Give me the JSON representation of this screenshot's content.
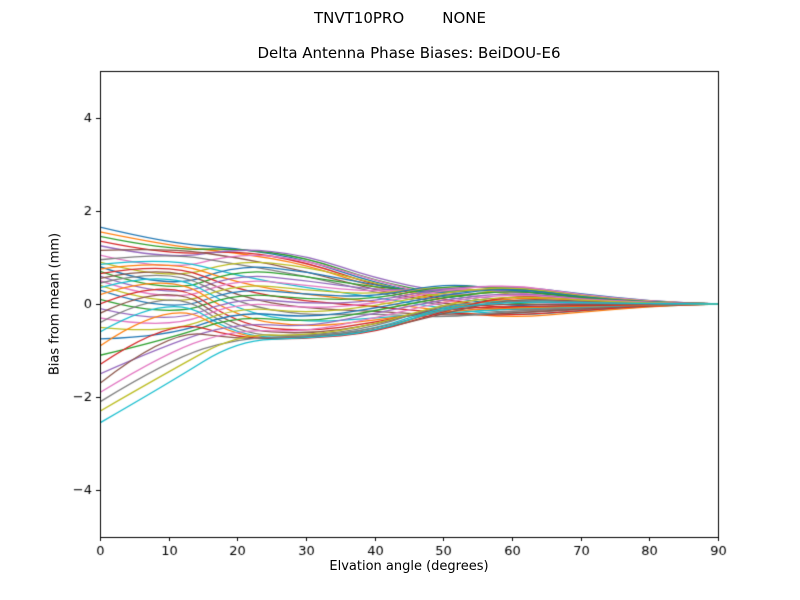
{
  "page": {
    "suptitle": "TNVT10PRO        NONE",
    "title": "Delta Antenna Phase Biases: BeiDOU-E6"
  },
  "chart_data": {
    "type": "line",
    "suptitle": "TNVT10PRO        NONE",
    "title": "Delta Antenna Phase Biases: BeiDOU-E6",
    "xlabel": "Elvation angle (degrees)",
    "ylabel": "Bias from mean (mm)",
    "xlim": [
      0,
      90
    ],
    "ylim": [
      -5,
      5
    ],
    "xticks": [
      0,
      10,
      20,
      30,
      40,
      50,
      60,
      70,
      80,
      90
    ],
    "yticks": [
      -4,
      -2,
      0,
      2,
      4
    ],
    "grid": false,
    "legend": "none",
    "x": [
      0,
      10,
      20,
      30,
      40,
      50,
      60,
      70,
      80,
      90
    ],
    "series": [
      {
        "color": "#1f77b4",
        "values": [
          1.65,
          1.3,
          1.2,
          0.95,
          0.45,
          0.15,
          -0.05,
          -0.05,
          0.0,
          0.0
        ]
      },
      {
        "color": "#ff7f0e",
        "values": [
          1.55,
          1.25,
          1.1,
          0.85,
          0.35,
          0.05,
          -0.1,
          -0.08,
          -0.02,
          0.0
        ]
      },
      {
        "color": "#2ca02c",
        "values": [
          1.45,
          1.15,
          1.2,
          1.0,
          0.5,
          0.2,
          0.0,
          -0.03,
          0.0,
          0.0
        ]
      },
      {
        "color": "#d62728",
        "values": [
          1.35,
          1.05,
          1.15,
          0.9,
          0.4,
          0.1,
          -0.12,
          -0.1,
          -0.03,
          0.0
        ]
      },
      {
        "color": "#9467bd",
        "values": [
          1.25,
          0.95,
          1.2,
          1.05,
          0.55,
          0.25,
          0.05,
          0.0,
          0.0,
          0.0
        ]
      },
      {
        "color": "#8c564b",
        "values": [
          1.15,
          1.2,
          1.0,
          0.7,
          0.3,
          0.0,
          -0.15,
          -0.1,
          -0.02,
          0.0
        ]
      },
      {
        "color": "#e377c2",
        "values": [
          1.05,
          0.7,
          1.1,
          0.95,
          0.5,
          0.15,
          0.3,
          0.15,
          0.05,
          0.0
        ]
      },
      {
        "color": "#7f7f7f",
        "values": [
          0.95,
          1.1,
          0.85,
          0.6,
          0.25,
          -0.05,
          -0.2,
          -0.12,
          -0.04,
          0.0
        ]
      },
      {
        "color": "#bcbd22",
        "values": [
          0.9,
          0.5,
          0.95,
          0.8,
          0.45,
          0.1,
          0.35,
          0.2,
          0.05,
          0.0
        ]
      },
      {
        "color": "#17becf",
        "values": [
          0.85,
          1.0,
          0.6,
          0.35,
          0.15,
          -0.1,
          -0.25,
          -0.15,
          -0.05,
          0.0
        ]
      },
      {
        "color": "#1f77b4",
        "values": [
          0.8,
          0.3,
          0.85,
          0.7,
          0.4,
          0.2,
          0.4,
          0.22,
          0.06,
          0.0
        ]
      },
      {
        "color": "#ff7f0e",
        "values": [
          0.75,
          0.95,
          0.45,
          0.2,
          0.05,
          -0.15,
          -0.3,
          -0.18,
          -0.05,
          0.0
        ]
      },
      {
        "color": "#2ca02c",
        "values": [
          0.7,
          0.2,
          0.75,
          0.6,
          0.35,
          0.25,
          0.35,
          0.18,
          0.04,
          0.0
        ]
      },
      {
        "color": "#d62728",
        "values": [
          0.65,
          0.9,
          0.3,
          0.05,
          -0.05,
          -0.2,
          -0.25,
          -0.14,
          -0.04,
          0.0
        ]
      },
      {
        "color": "#9467bd",
        "values": [
          0.6,
          0.1,
          0.65,
          0.5,
          0.3,
          0.3,
          0.3,
          0.15,
          0.04,
          0.0
        ]
      },
      {
        "color": "#8c564b",
        "values": [
          0.55,
          0.85,
          0.15,
          -0.1,
          -0.15,
          -0.25,
          -0.2,
          -0.1,
          -0.03,
          0.0
        ]
      },
      {
        "color": "#e377c2",
        "values": [
          0.5,
          0.0,
          0.55,
          0.4,
          0.25,
          0.35,
          0.25,
          0.12,
          0.03,
          0.0
        ]
      },
      {
        "color": "#7f7f7f",
        "values": [
          0.45,
          0.8,
          0.0,
          -0.25,
          -0.2,
          -0.3,
          -0.15,
          -0.08,
          -0.02,
          0.0
        ]
      },
      {
        "color": "#bcbd22",
        "values": [
          0.4,
          -0.1,
          0.45,
          0.3,
          0.2,
          0.4,
          0.2,
          0.1,
          0.03,
          0.0
        ]
      },
      {
        "color": "#17becf",
        "values": [
          0.35,
          0.75,
          -0.15,
          -0.4,
          -0.3,
          -0.2,
          -0.1,
          -0.06,
          -0.02,
          0.0
        ]
      },
      {
        "color": "#1f77b4",
        "values": [
          0.3,
          -0.2,
          0.35,
          0.2,
          0.15,
          0.45,
          0.3,
          0.14,
          0.04,
          0.0
        ]
      },
      {
        "color": "#ff7f0e",
        "values": [
          0.2,
          0.7,
          -0.3,
          -0.5,
          -0.35,
          -0.15,
          -0.08,
          -0.05,
          -0.01,
          0.0
        ]
      },
      {
        "color": "#2ca02c",
        "values": [
          0.1,
          -0.3,
          0.25,
          0.1,
          0.1,
          0.4,
          0.35,
          0.16,
          0.05,
          0.0
        ]
      },
      {
        "color": "#d62728",
        "values": [
          0.0,
          0.6,
          -0.45,
          -0.6,
          -0.4,
          -0.1,
          -0.05,
          -0.04,
          -0.01,
          0.0
        ]
      },
      {
        "color": "#9467bd",
        "values": [
          -0.1,
          -0.45,
          0.15,
          0.0,
          0.05,
          0.35,
          0.4,
          0.18,
          0.05,
          0.0
        ]
      },
      {
        "color": "#8c564b",
        "values": [
          -0.2,
          0.5,
          -0.55,
          -0.65,
          -0.45,
          -0.05,
          0.0,
          -0.02,
          0.0,
          0.0
        ]
      },
      {
        "color": "#e377c2",
        "values": [
          -0.3,
          -0.55,
          0.05,
          -0.1,
          0.0,
          0.3,
          0.42,
          0.2,
          0.06,
          0.0
        ]
      },
      {
        "color": "#7f7f7f",
        "values": [
          -0.4,
          0.4,
          -0.65,
          -0.7,
          -0.5,
          0.0,
          0.05,
          0.02,
          0.0,
          0.0
        ]
      },
      {
        "color": "#bcbd22",
        "values": [
          -0.5,
          -0.65,
          -0.05,
          -0.2,
          -0.05,
          0.25,
          0.38,
          0.17,
          0.05,
          0.0
        ]
      },
      {
        "color": "#17becf",
        "values": [
          -0.6,
          0.25,
          -0.7,
          -0.72,
          -0.55,
          -0.05,
          0.1,
          0.05,
          0.01,
          0.0
        ]
      },
      {
        "color": "#1f77b4",
        "values": [
          -0.75,
          -0.7,
          -0.15,
          -0.3,
          -0.1,
          0.2,
          0.35,
          0.15,
          0.04,
          0.0
        ]
      },
      {
        "color": "#ff7f0e",
        "values": [
          -0.9,
          0.1,
          -0.72,
          -0.74,
          -0.6,
          -0.1,
          0.15,
          0.08,
          0.02,
          0.0
        ]
      },
      {
        "color": "#2ca02c",
        "values": [
          -1.1,
          -0.75,
          -0.25,
          -0.4,
          -0.15,
          0.15,
          0.3,
          0.13,
          0.04,
          0.0
        ]
      },
      {
        "color": "#d62728",
        "values": [
          -1.3,
          -0.3,
          -0.74,
          -0.75,
          -0.62,
          -0.15,
          0.2,
          0.1,
          0.03,
          0.0
        ]
      },
      {
        "color": "#9467bd",
        "values": [
          -1.5,
          -0.85,
          -0.4,
          -0.5,
          -0.2,
          0.1,
          0.25,
          0.11,
          0.03,
          0.0
        ]
      },
      {
        "color": "#8c564b",
        "values": [
          -1.7,
          -0.55,
          -0.75,
          -0.73,
          -0.58,
          -0.2,
          0.12,
          0.06,
          0.02,
          0.0
        ]
      },
      {
        "color": "#e377c2",
        "values": [
          -1.9,
          -1.0,
          -0.55,
          -0.6,
          -0.3,
          0.05,
          0.22,
          0.1,
          0.03,
          0.0
        ]
      },
      {
        "color": "#7f7f7f",
        "values": [
          -2.1,
          -1.2,
          -0.73,
          -0.7,
          -0.55,
          -0.12,
          0.08,
          0.04,
          0.01,
          0.0
        ]
      },
      {
        "color": "#bcbd22",
        "values": [
          -2.3,
          -1.45,
          -0.65,
          -0.68,
          -0.45,
          0.0,
          0.18,
          0.08,
          0.02,
          0.0
        ]
      },
      {
        "color": "#17becf",
        "values": [
          -2.55,
          -1.7,
          -0.78,
          -0.74,
          -0.6,
          -0.08,
          0.05,
          0.03,
          0.01,
          0.0
        ]
      }
    ]
  }
}
